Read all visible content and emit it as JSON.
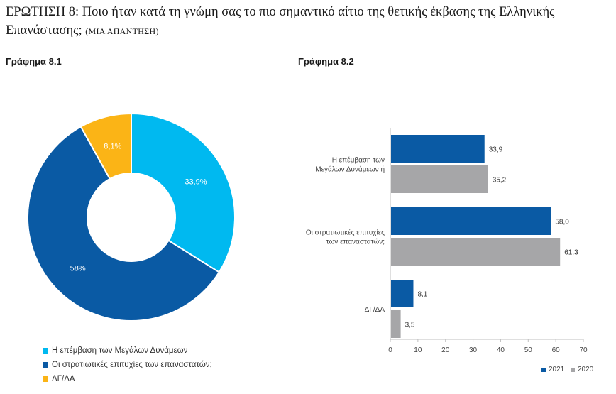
{
  "question": {
    "title": "ΕΡΩΤΗΣΗ 8: Ποιο ήταν κατά τη γνώμη σας το πιο σημαντικό αίτιο της θετικής έκβασης της Ελληνικής Επανάστασης;",
    "note": "(ΜΙΑ ΑΠΑΝΤΗΣΗ)"
  },
  "chart_data": [
    {
      "type": "pie",
      "title": "Γράφημα 8.1",
      "donut": true,
      "categories": [
        "Η επέμβαση των Μεγάλων Δυνάμεων",
        "Οι στρατιωτικές επιτυχίες των επαναστατών;",
        "ΔΓ/ΔΑ"
      ],
      "values": [
        33.9,
        58,
        8.1
      ],
      "labels": [
        "33,9%",
        "58%",
        "8,1%"
      ],
      "colors": [
        "#00b9f0",
        "#0a5aa4",
        "#fbb416"
      ],
      "legend": "bottom-left"
    },
    {
      "type": "bar",
      "orientation": "horizontal",
      "title": "Γράφημα 8.2",
      "categories": [
        [
          "Η επέμβαση των",
          "Μεγάλων Δυνάμεων ή"
        ],
        [
          "Οι στρατιωτικές επιτυχίες",
          "των επαναστατών;"
        ],
        [
          "ΔΓ/ΔΑ"
        ]
      ],
      "series": [
        {
          "name": "2021",
          "color": "#0a5aa4",
          "values": [
            33.9,
            58.0,
            8.1
          ],
          "labels": [
            "33,9",
            "58,0",
            "8,1"
          ]
        },
        {
          "name": "2020",
          "color": "#a6a6a8",
          "values": [
            35.2,
            61.3,
            3.5
          ],
          "labels": [
            "35,2",
            "61,3",
            "3,5"
          ]
        }
      ],
      "xlim": [
        0,
        70
      ],
      "xticks": [
        0,
        10,
        20,
        30,
        40,
        50,
        60,
        70
      ],
      "legend": "bottom-right"
    }
  ]
}
